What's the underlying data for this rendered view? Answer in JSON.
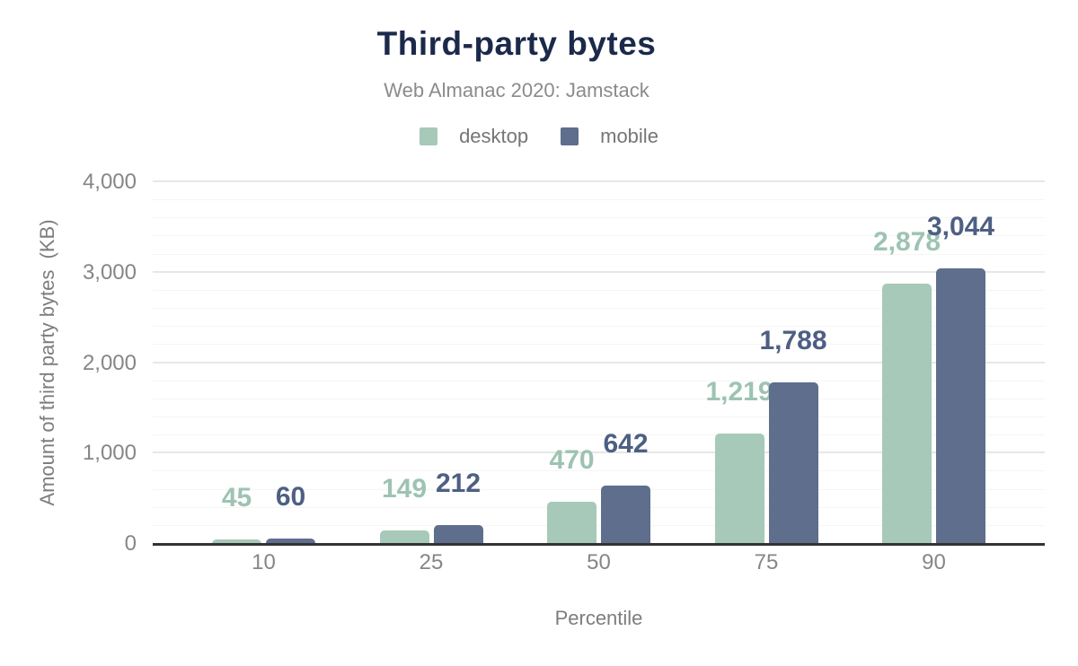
{
  "chart_data": {
    "type": "bar",
    "title": "Third-party bytes",
    "subtitle": "Web Almanac 2020: Jamstack",
    "xlabel": "Percentile",
    "ylabel": "Amount of third party bytes  (KB)",
    "categories": [
      "10",
      "25",
      "50",
      "75",
      "90"
    ],
    "series": [
      {
        "name": "desktop",
        "color": "#a7c9b9",
        "label_color": "#9dc3b2",
        "values": [
          45,
          149,
          470,
          1219,
          2878
        ],
        "value_labels": [
          "45",
          "149",
          "470",
          "1,219",
          "2,878"
        ]
      },
      {
        "name": "mobile",
        "color": "#5e6e8c",
        "label_color": "#4d5f83",
        "values": [
          60,
          212,
          642,
          1788,
          3044
        ],
        "value_labels": [
          "60",
          "212",
          "642",
          "1,788",
          "3,044"
        ]
      }
    ],
    "ylim": [
      0,
      4000
    ],
    "yticks": [
      0,
      1000,
      2000,
      3000,
      4000
    ],
    "ytick_labels": [
      "0",
      "1,000",
      "2,000",
      "3,000",
      "4,000"
    ],
    "minor_grid_step": 200,
    "grid": "horizontal-major-and-minor",
    "legend_position": "top",
    "bar_corner_radius": 5
  },
  "colors": {
    "title": "#1b2a4a",
    "subtitle": "#8b8b8b",
    "axis_text": "#868686",
    "axis_line": "#333333",
    "major_grid": "#e7e7e7",
    "minor_grid": "#f5f5f5",
    "background": "#ffffff"
  }
}
